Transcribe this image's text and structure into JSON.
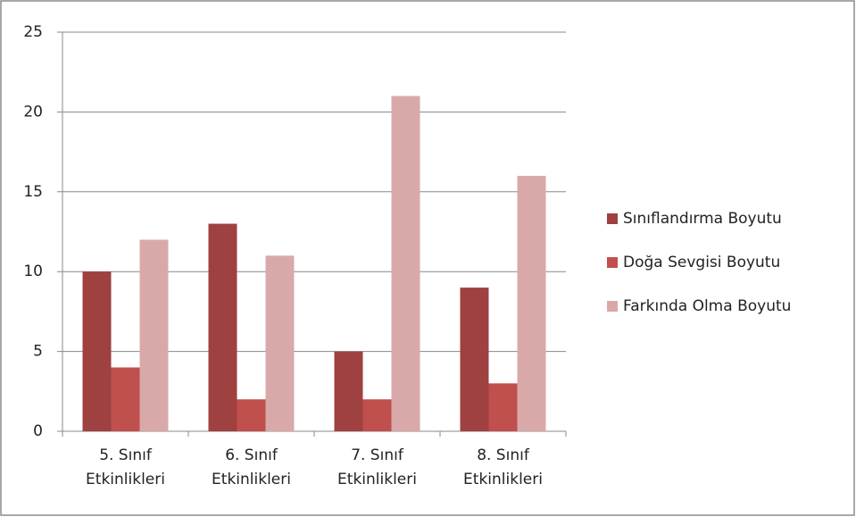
{
  "chart_data": {
    "type": "bar",
    "categories": [
      "5. Sınıf Etkinlikleri",
      "6. Sınıf Etkinlikleri",
      "7. Sınıf Etkinlikleri",
      "8. Sınıf Etkinlikleri"
    ],
    "series": [
      {
        "name": "Sınıflandırma Boyutu",
        "color": "#9e4140",
        "values": [
          10,
          13,
          5,
          9
        ]
      },
      {
        "name": "Doğa Sevgisi Boyutu",
        "color": "#c0504d",
        "values": [
          4,
          2,
          2,
          3
        ]
      },
      {
        "name": "Farkında Olma Boyutu",
        "color": "#d9a9aa",
        "values": [
          12,
          11,
          21,
          16
        ]
      }
    ],
    "ylim": [
      0,
      25
    ],
    "yticks": [
      0,
      5,
      10,
      15,
      20,
      25
    ],
    "grid": true,
    "legend": "right"
  }
}
